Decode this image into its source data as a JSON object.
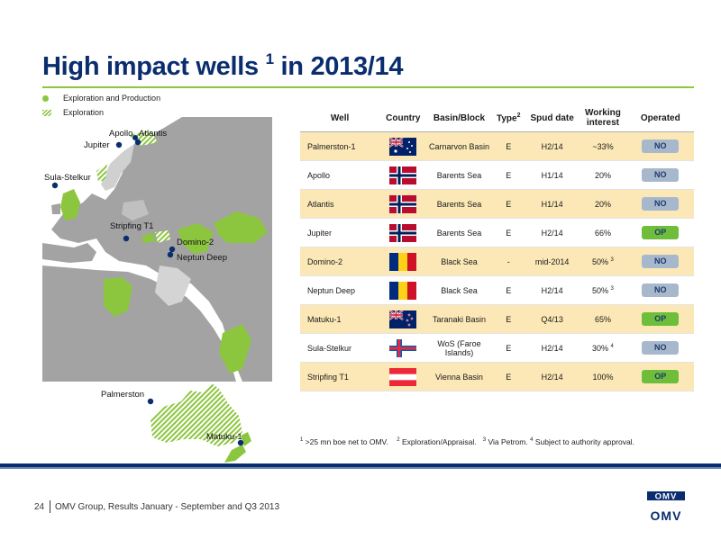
{
  "title": {
    "main": "High impact wells",
    "sup": "1",
    "period": "in 2013/14"
  },
  "legend": {
    "production": "Exploration and Production",
    "exploration": "Exploration"
  },
  "map_labels": {
    "apollo": "Apollo",
    "atlantis": "Atlantis",
    "jupiter": "Jupiter",
    "sula": "Sula-Stelkur",
    "stripfing": "Stripfing T1",
    "domino": "Domino-2",
    "neptun": "Neptun Deep",
    "palmerston": "Palmerston",
    "matuku": "Matuku-1"
  },
  "table": {
    "headers": {
      "well": "Well",
      "country": "Country",
      "basin": "Basin/Block",
      "type": "Type",
      "type_sup": "2",
      "spud": "Spud date",
      "wi": "Working interest",
      "operated": "Operated"
    },
    "rows": [
      {
        "well": "Palmerston-1",
        "flag": "australia",
        "basin": "Carnarvon Basin",
        "type": "E",
        "spud": "H2/14",
        "wi": "~33%",
        "wi_sup": "",
        "operated": "NO"
      },
      {
        "well": "Apollo",
        "flag": "norway",
        "basin": "Barents Sea",
        "type": "E",
        "spud": "H1/14",
        "wi": "20%",
        "wi_sup": "",
        "operated": "NO"
      },
      {
        "well": "Atlantis",
        "flag": "norway",
        "basin": "Barents Sea",
        "type": "E",
        "spud": "H1/14",
        "wi": "20%",
        "wi_sup": "",
        "operated": "NO"
      },
      {
        "well": "Jupiter",
        "flag": "norway",
        "basin": "Barents Sea",
        "type": "E",
        "spud": "H2/14",
        "wi": "66%",
        "wi_sup": "",
        "operated": "OP"
      },
      {
        "well": "Domino-2",
        "flag": "romania",
        "basin": "Black Sea",
        "type": "-",
        "spud": "mid-2014",
        "wi": "50%",
        "wi_sup": "3",
        "operated": "NO"
      },
      {
        "well": "Neptun Deep",
        "flag": "romania",
        "basin": "Black Sea",
        "type": "E",
        "spud": "H2/14",
        "wi": "50%",
        "wi_sup": "3",
        "operated": "NO"
      },
      {
        "well": "Matuku-1",
        "flag": "newzealand",
        "basin": "Taranaki Basin",
        "type": "E",
        "spud": "Q4/13",
        "wi": "65%",
        "wi_sup": "",
        "operated": "OP"
      },
      {
        "well": "Sula-Stelkur",
        "flag": "faroe",
        "basin": "WoS (Faroe Islands)",
        "type": "E",
        "spud": "H2/14",
        "wi": "30%",
        "wi_sup": "4",
        "operated": "NO"
      },
      {
        "well": "Stripfing T1",
        "flag": "austria",
        "basin": "Vienna Basin",
        "type": "E",
        "spud": "H2/14",
        "wi": "100%",
        "wi_sup": "",
        "operated": "OP"
      }
    ]
  },
  "footnotes": {
    "n1": "1",
    "t1": ">25 mn boe net to OMV.",
    "n2": "2",
    "t2": "Exploration/Appraisal.",
    "n3": "3",
    "t3": "Via Petrom.",
    "n4": "4",
    "t4": "Subject to authority approval."
  },
  "footer": {
    "page": "24",
    "text": "OMV Group, Results January - September and Q3 2013"
  },
  "logo": {
    "text": "OMV"
  },
  "colors": {
    "accent": "#8cc63f",
    "brand": "#0a2d6e",
    "op_badge": "#6ebe3c",
    "no_badge": "#a8b8cc",
    "row_highlight": "#fbe8b6"
  }
}
